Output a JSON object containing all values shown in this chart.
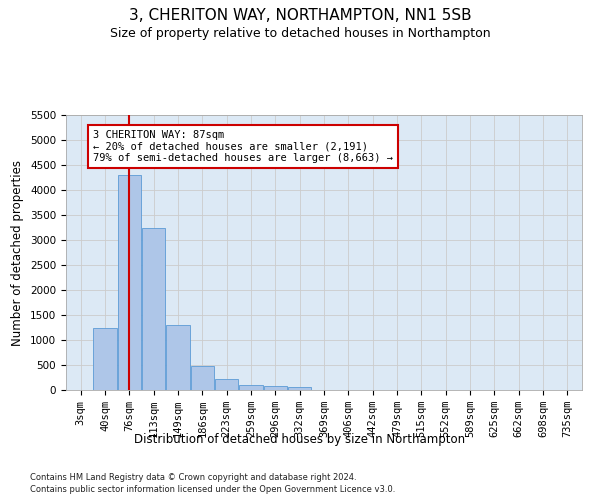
{
  "title": "3, CHERITON WAY, NORTHAMPTON, NN1 5SB",
  "subtitle": "Size of property relative to detached houses in Northampton",
  "xlabel": "Distribution of detached houses by size in Northampton",
  "ylabel": "Number of detached properties",
  "footnote1": "Contains HM Land Registry data © Crown copyright and database right 2024.",
  "footnote2": "Contains public sector information licensed under the Open Government Licence v3.0.",
  "categories": [
    "3sqm",
    "40sqm",
    "76sqm",
    "113sqm",
    "149sqm",
    "186sqm",
    "223sqm",
    "259sqm",
    "296sqm",
    "332sqm",
    "369sqm",
    "406sqm",
    "442sqm",
    "479sqm",
    "515sqm",
    "552sqm",
    "589sqm",
    "625sqm",
    "662sqm",
    "698sqm",
    "735sqm"
  ],
  "values": [
    0,
    1250,
    4300,
    3250,
    1300,
    490,
    230,
    110,
    80,
    60,
    0,
    0,
    0,
    0,
    0,
    0,
    0,
    0,
    0,
    0,
    0
  ],
  "bar_color": "#aec6e8",
  "bar_edge_color": "#5b9bd5",
  "annotation_text": "3 CHERITON WAY: 87sqm\n← 20% of detached houses are smaller (2,191)\n79% of semi-detached houses are larger (8,663) →",
  "annotation_box_color": "#ffffff",
  "annotation_box_edge": "#cc0000",
  "ylim": [
    0,
    5500
  ],
  "yticks": [
    0,
    500,
    1000,
    1500,
    2000,
    2500,
    3000,
    3500,
    4000,
    4500,
    5000,
    5500
  ],
  "red_line_color": "#cc0000",
  "title_fontsize": 11,
  "subtitle_fontsize": 9,
  "axis_label_fontsize": 8.5,
  "tick_fontsize": 7.5,
  "background_color": "#ffffff",
  "grid_color": "#cccccc",
  "ax_bg_color": "#dce9f5"
}
